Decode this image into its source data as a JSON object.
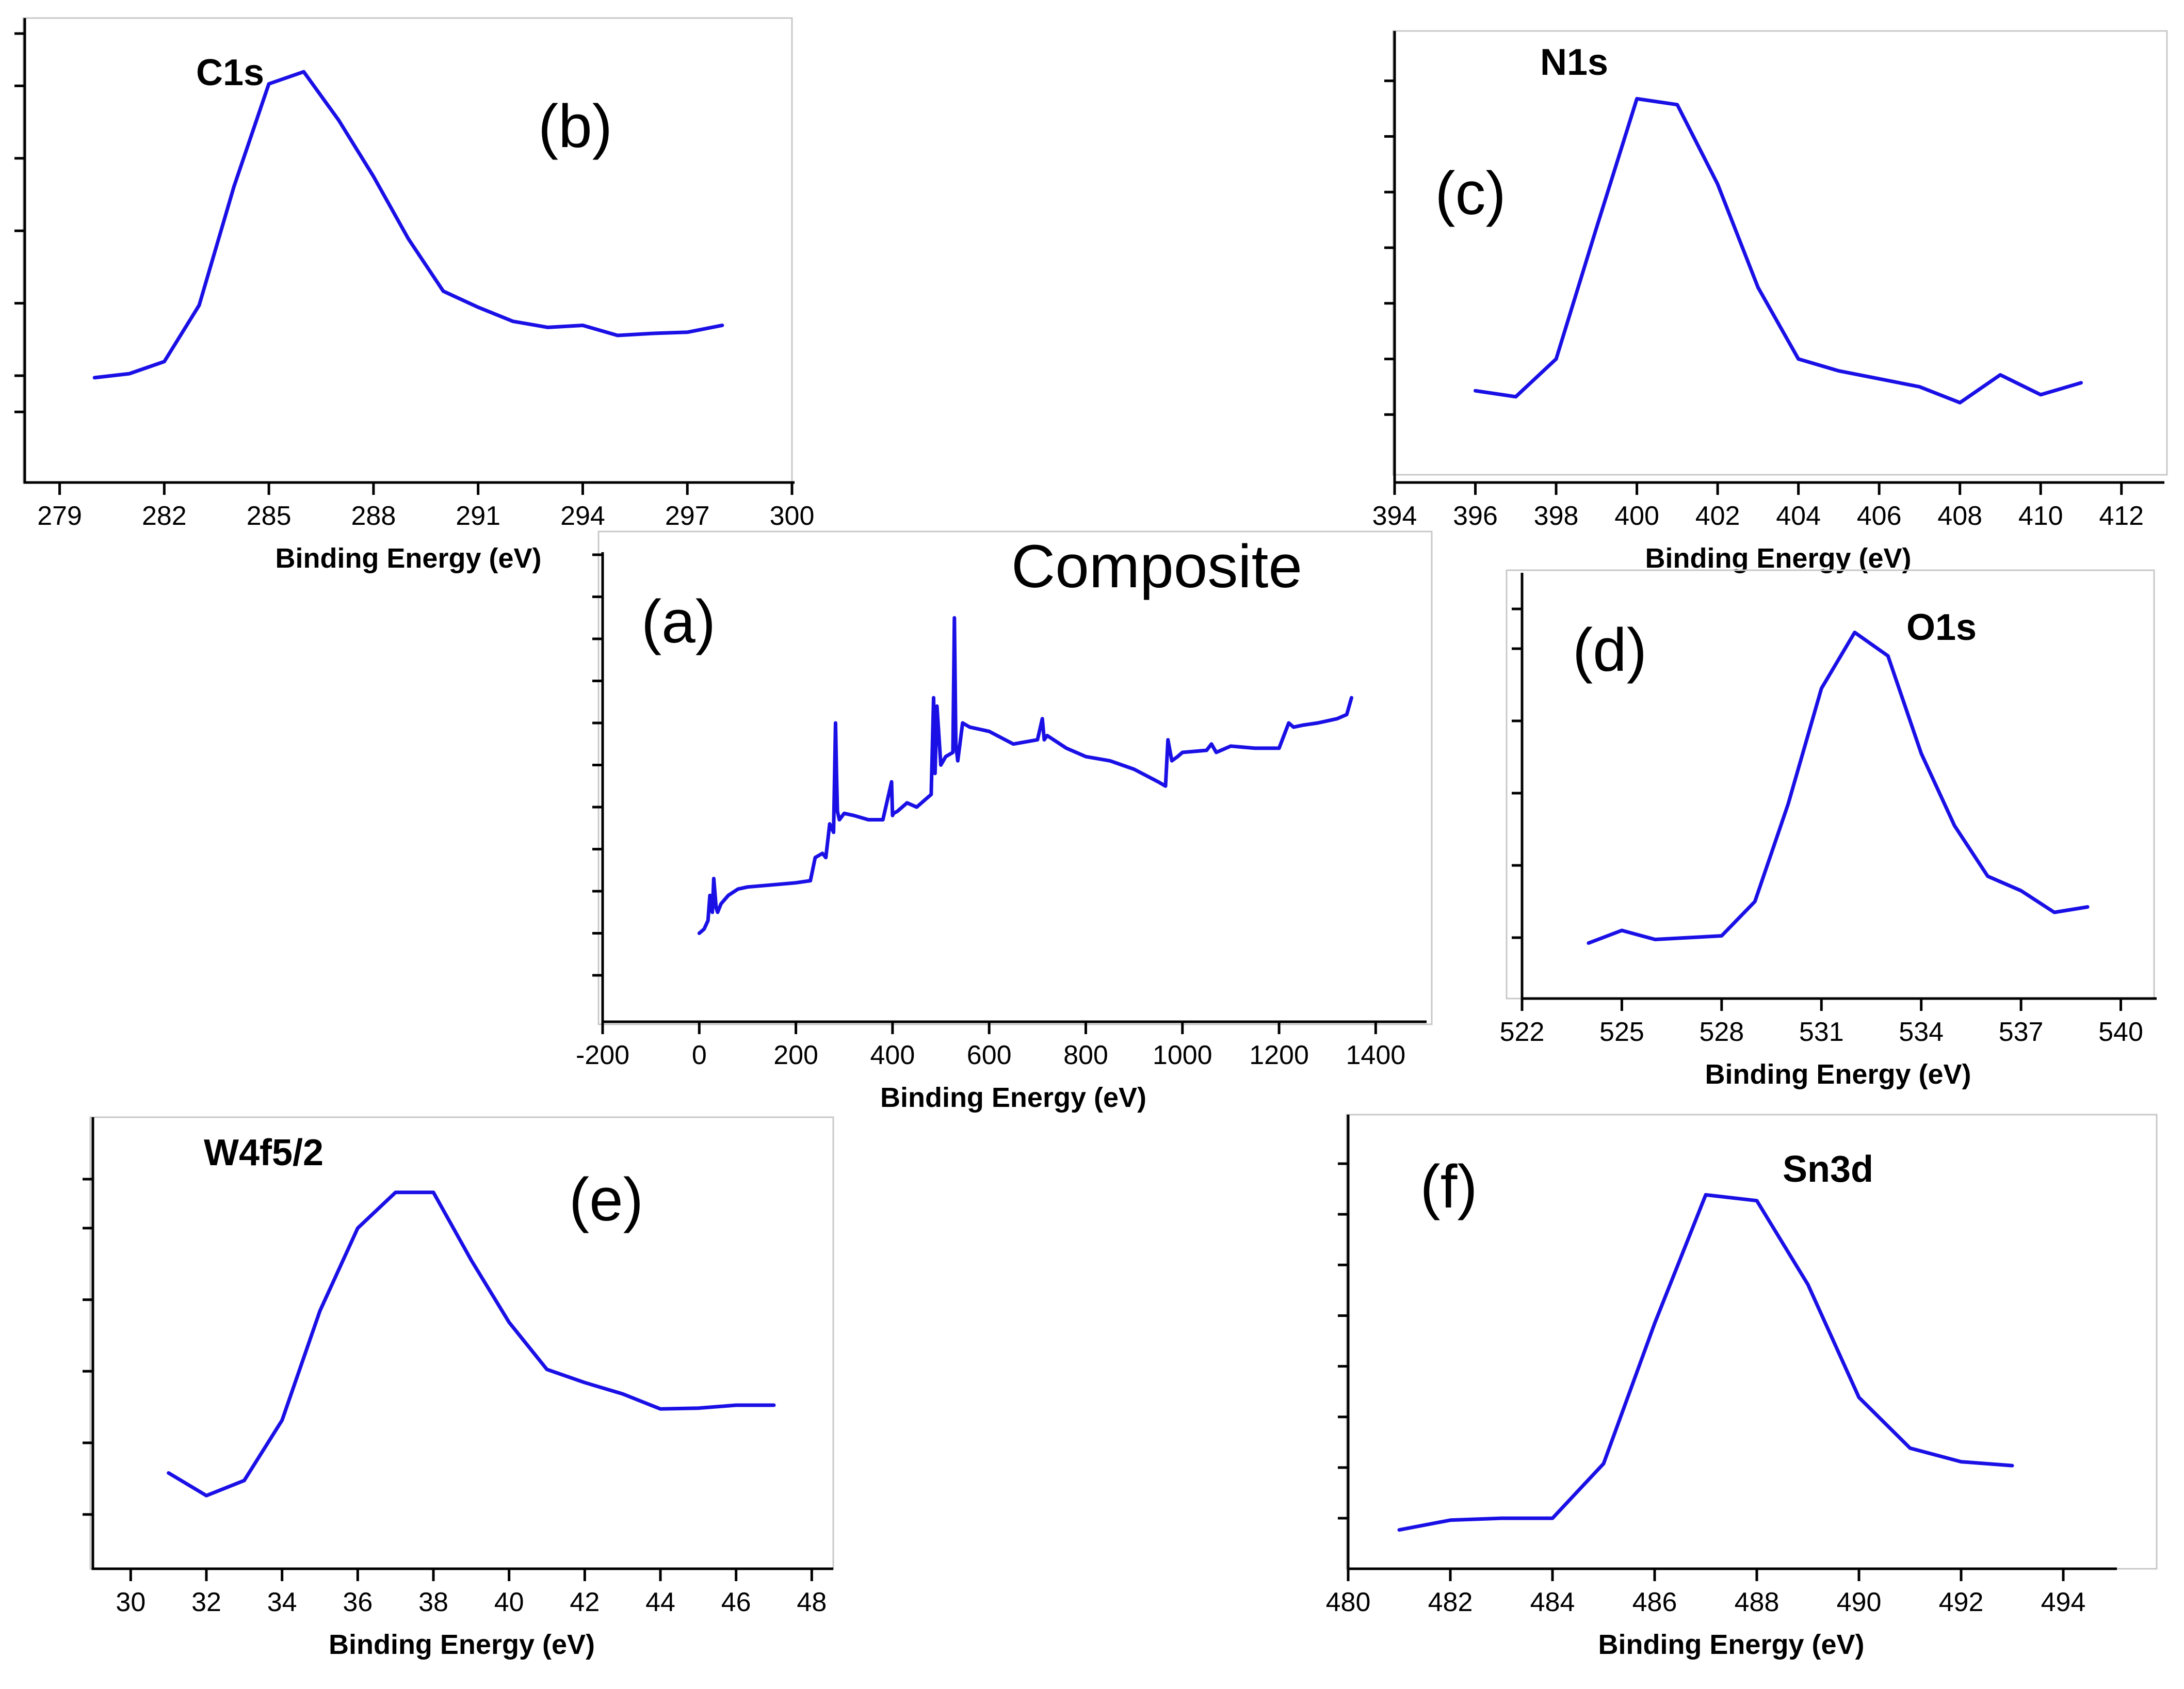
{
  "figure": {
    "accent_color": "#1a10e6"
  },
  "chart_data": [
    {
      "id": "a",
      "type": "line",
      "panel_label": "(a)",
      "title": "Composite",
      "xlabel": "Binding Energy (eV)",
      "ylabel": "",
      "xlim": [
        -200,
        1500
      ],
      "ylim": [
        0,
        10
      ],
      "xticks": [
        -200,
        0,
        200,
        400,
        600,
        800,
        1000,
        1200,
        1400
      ],
      "xtick_labels": [
        "-200",
        "0",
        "200",
        "400",
        "600",
        "800",
        "1000",
        "1200",
        "1400"
      ],
      "yticks": [
        0,
        1,
        2,
        3,
        4,
        5,
        6,
        7,
        8,
        9,
        10
      ],
      "series": [
        {
          "name": "Composite survey",
          "x": [
            0,
            10,
            18,
            22,
            27,
            30,
            35,
            38,
            45,
            60,
            80,
            100,
            150,
            200,
            230,
            240,
            255,
            262,
            270,
            278,
            282,
            284,
            286,
            290,
            300,
            320,
            350,
            380,
            398,
            400,
            402,
            410,
            430,
            450,
            480,
            485,
            488,
            492,
            500,
            510,
            525,
            528,
            531,
            535,
            545,
            560,
            600,
            650,
            700,
            710,
            714,
            720,
            740,
            760,
            780,
            800,
            850,
            900,
            950,
            965,
            970,
            978,
            990,
            1000,
            1050,
            1060,
            1070,
            1100,
            1150,
            1200,
            1220,
            1230,
            1250,
            1280,
            1300,
            1320,
            1340,
            1350
          ],
          "y": [
            1.0,
            1.1,
            1.3,
            1.9,
            1.5,
            2.3,
            1.6,
            1.5,
            1.7,
            1.9,
            2.05,
            2.1,
            2.15,
            2.2,
            2.25,
            2.8,
            2.9,
            2.8,
            3.6,
            3.4,
            6.0,
            4.8,
            3.9,
            3.7,
            3.85,
            3.8,
            3.7,
            3.7,
            4.6,
            3.8,
            3.85,
            3.9,
            4.1,
            4.0,
            4.3,
            6.6,
            4.8,
            6.4,
            5.0,
            5.2,
            5.3,
            8.5,
            5.5,
            5.1,
            6.0,
            5.9,
            5.8,
            5.5,
            5.6,
            6.1,
            5.6,
            5.7,
            5.55,
            5.4,
            5.3,
            5.2,
            5.1,
            4.9,
            4.6,
            4.5,
            5.6,
            5.1,
            5.2,
            5.3,
            5.35,
            5.5,
            5.3,
            5.45,
            5.4,
            5.4,
            6.0,
            5.9,
            5.95,
            6.0,
            6.05,
            6.1,
            6.2,
            6.6
          ]
        }
      ]
    },
    {
      "id": "b",
      "type": "line",
      "panel_label": "(b)",
      "element_label": "C1s",
      "xlabel": "Binding Energy (eV)",
      "ylabel": "",
      "xlim": [
        278,
        300
      ],
      "ylim": [
        0,
        10
      ],
      "xticks": [
        279,
        282,
        285,
        288,
        291,
        294,
        297,
        300
      ],
      "xtick_labels": [
        "279",
        "282",
        "285",
        "288",
        "291",
        "294",
        "297",
        "300"
      ],
      "yticks": [
        0.6,
        1.5,
        3.3,
        5.1,
        6.9,
        8.7,
        10
      ],
      "series": [
        {
          "name": "C1s",
          "x": [
            280,
            281,
            282,
            283,
            284,
            285,
            286,
            287,
            288,
            289,
            290,
            291,
            292,
            293,
            294,
            295,
            296,
            297,
            298
          ],
          "y": [
            1.45,
            1.55,
            1.85,
            3.25,
            6.2,
            8.75,
            9.05,
            7.85,
            6.45,
            4.9,
            3.6,
            3.2,
            2.85,
            2.7,
            2.75,
            2.5,
            2.55,
            2.58,
            2.75
          ]
        }
      ]
    },
    {
      "id": "c",
      "type": "line",
      "panel_label": "(c)",
      "element_label": "N1s",
      "xlabel": "Binding Energy (eV)",
      "ylabel": "",
      "xlim": [
        394,
        413
      ],
      "ylim": [
        0,
        10
      ],
      "xticks": [
        394,
        396,
        398,
        400,
        402,
        404,
        406,
        408,
        410,
        412
      ],
      "xtick_labels": [
        "394",
        "396",
        "398",
        "400",
        "402",
        "404",
        "406",
        "408",
        "410",
        "412"
      ],
      "yticks": [
        0.8,
        2.2,
        3.6,
        5.0,
        6.4,
        7.8,
        9.2
      ],
      "series": [
        {
          "name": "N1s",
          "x": [
            396,
            397,
            398,
            399,
            400,
            401,
            402,
            403,
            404,
            405,
            406,
            407,
            408,
            409,
            410,
            411
          ],
          "y": [
            1.4,
            1.25,
            2.2,
            5.5,
            8.75,
            8.6,
            6.6,
            4.0,
            2.2,
            1.9,
            1.7,
            1.5,
            1.1,
            1.8,
            1.3,
            1.6
          ]
        }
      ]
    },
    {
      "id": "d",
      "type": "line",
      "panel_label": "(d)",
      "element_label": "O1s",
      "xlabel": "Binding Energy (eV)",
      "ylabel": "",
      "xlim": [
        522,
        541
      ],
      "ylim": [
        0,
        10
      ],
      "xticks": [
        522,
        525,
        528,
        531,
        534,
        537,
        540
      ],
      "xtick_labels": [
        "522",
        "525",
        "528",
        "531",
        "534",
        "537",
        "540"
      ],
      "yticks": [
        0.9,
        2.9,
        4.9,
        6.9,
        8.9,
        10
      ],
      "series": [
        {
          "name": "O1s",
          "x": [
            524,
            525,
            526,
            527,
            528,
            529,
            530,
            531,
            532,
            533,
            534,
            535,
            536,
            537,
            538,
            539
          ],
          "y": [
            0.75,
            1.1,
            0.85,
            0.9,
            0.95,
            1.9,
            4.6,
            7.8,
            9.35,
            8.7,
            6.0,
            4.0,
            2.6,
            2.2,
            1.6,
            1.75
          ]
        }
      ]
    },
    {
      "id": "e",
      "type": "line",
      "panel_label": "(e)",
      "element_label": "W4f5/2",
      "xlabel": "Binding Energy (eV)",
      "ylabel": "",
      "xlim": [
        29,
        48.5
      ],
      "ylim": [
        0,
        10
      ],
      "xticks": [
        30,
        32,
        34,
        36,
        38,
        40,
        42,
        44,
        46,
        48
      ],
      "xtick_labels": [
        "30",
        "32",
        "34",
        "36",
        "38",
        "40",
        "42",
        "44",
        "46",
        "48"
      ],
      "yticks": [
        1.1,
        3.0,
        4.9,
        6.8,
        8.7,
        10
      ],
      "series": [
        {
          "name": "W4f5/2",
          "x": [
            31,
            32,
            33,
            34,
            35,
            36,
            37,
            38,
            39,
            40,
            41,
            42,
            43,
            44,
            45,
            46,
            47
          ],
          "y": [
            2.2,
            1.6,
            2.0,
            3.6,
            6.5,
            8.7,
            9.65,
            9.65,
            7.85,
            6.2,
            4.95,
            4.6,
            4.3,
            3.9,
            3.92,
            4.0,
            4.0
          ]
        }
      ]
    },
    {
      "id": "f",
      "type": "line",
      "panel_label": "(f)",
      "element_label": "Sn3d",
      "xlabel": "Binding Energy (eV)",
      "ylabel": "",
      "xlim": [
        480,
        495
      ],
      "ylim": [
        0,
        10
      ],
      "xticks": [
        480,
        482,
        484,
        486,
        488,
        490,
        492,
        494
      ],
      "xtick_labels": [
        "480",
        "482",
        "484",
        "486",
        "488",
        "490",
        "492",
        "494"
      ],
      "yticks": [
        0.9,
        2.2,
        3.5,
        4.8,
        6.1,
        7.4,
        8.7,
        10
      ],
      "series": [
        {
          "name": "Sn3d",
          "x": [
            481,
            482,
            483,
            484,
            485,
            486,
            487,
            488,
            489,
            490,
            491,
            492,
            493
          ],
          "y": [
            0.6,
            0.85,
            0.9,
            0.9,
            2.3,
            5.9,
            9.2,
            9.05,
            6.9,
            4.0,
            2.7,
            2.35,
            2.25
          ]
        }
      ]
    }
  ]
}
